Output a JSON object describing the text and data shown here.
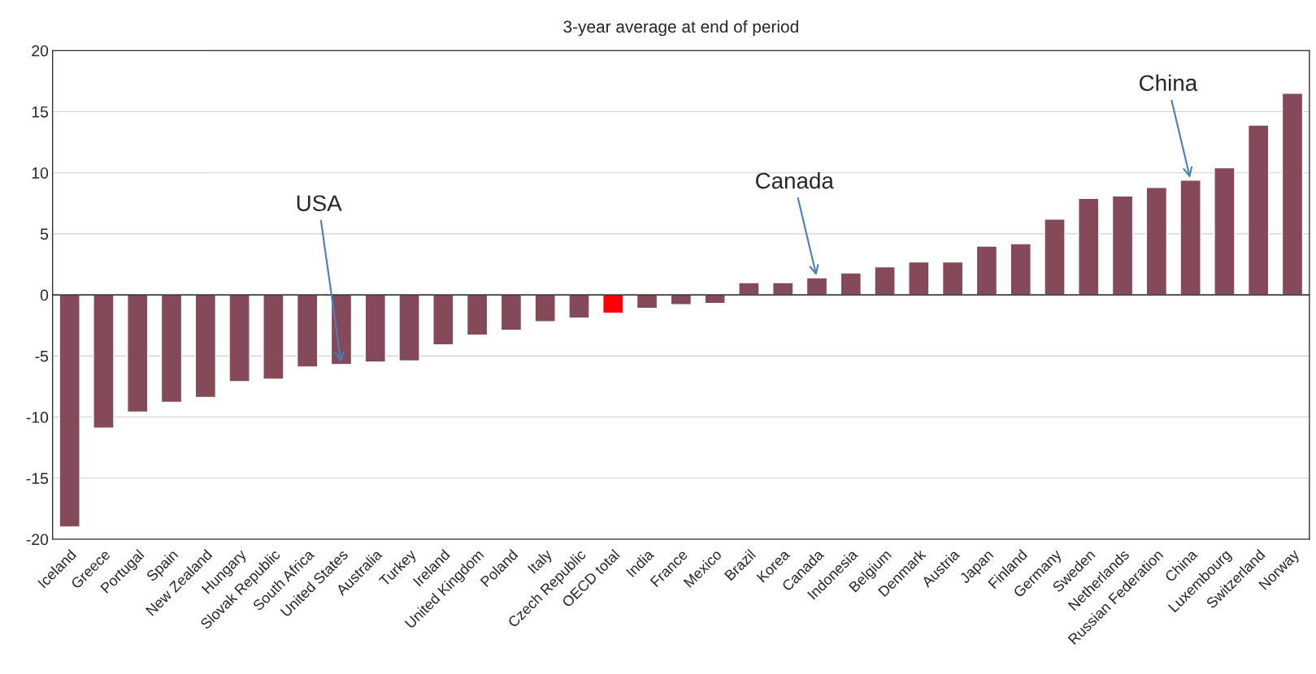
{
  "chart_data": {
    "type": "bar",
    "title": "3-year average at end of period",
    "categories": [
      "Iceland",
      "Greece",
      "Portugal",
      "Spain",
      "New Zealand",
      "Hungary",
      "Slovak Republic",
      "South Africa",
      "United States",
      "Australia",
      "Turkey",
      "Ireland",
      "United Kingdom",
      "Poland",
      "Italy",
      "Czech Republic",
      "OECD total",
      "India",
      "France",
      "Mexico",
      "Brazil",
      "Korea",
      "Canada",
      "Indonesia",
      "Belgium",
      "Denmark",
      "Austria",
      "Japan",
      "Finland",
      "Germany",
      "Sweden",
      "Netherlands",
      "Russian Federation",
      "China",
      "Luxembourg",
      "Switzerland",
      "Norway"
    ],
    "values": [
      -19,
      -10.9,
      -9.6,
      -8.8,
      -8.4,
      -7.1,
      -6.9,
      -5.9,
      -5.7,
      -5.5,
      -5.4,
      -4.1,
      -3.3,
      -2.9,
      -2.2,
      -1.9,
      -1.5,
      -1.1,
      -0.8,
      -0.7,
      1.0,
      1.0,
      1.4,
      1.8,
      2.3,
      2.7,
      2.7,
      4.0,
      4.2,
      6.2,
      7.9,
      8.1,
      8.8,
      9.4,
      10.4,
      13.9,
      16.5
    ],
    "colors": [
      "#854a5a",
      "#854a5a",
      "#854a5a",
      "#854a5a",
      "#854a5a",
      "#854a5a",
      "#854a5a",
      "#854a5a",
      "#854a5a",
      "#854a5a",
      "#854a5a",
      "#854a5a",
      "#854a5a",
      "#854a5a",
      "#854a5a",
      "#854a5a",
      "#ff0000",
      "#854a5a",
      "#854a5a",
      "#854a5a",
      "#854a5a",
      "#854a5a",
      "#854a5a",
      "#854a5a",
      "#854a5a",
      "#854a5a",
      "#854a5a",
      "#854a5a",
      "#854a5a",
      "#854a5a",
      "#854a5a",
      "#854a5a",
      "#854a5a",
      "#854a5a",
      "#854a5a",
      "#854a5a",
      "#854a5a"
    ],
    "ylim": [
      -20,
      20
    ],
    "yticks": [
      -20,
      -15,
      -10,
      -5,
      0,
      5,
      10,
      15,
      20
    ],
    "grid": "y",
    "legend": false,
    "annotations": [
      {
        "text": "USA",
        "x": "United States",
        "y": -5.7
      },
      {
        "text": "Canada",
        "x": "Canada",
        "y": 1.4
      },
      {
        "text": "China",
        "x": "China",
        "y": 9.4
      }
    ]
  }
}
